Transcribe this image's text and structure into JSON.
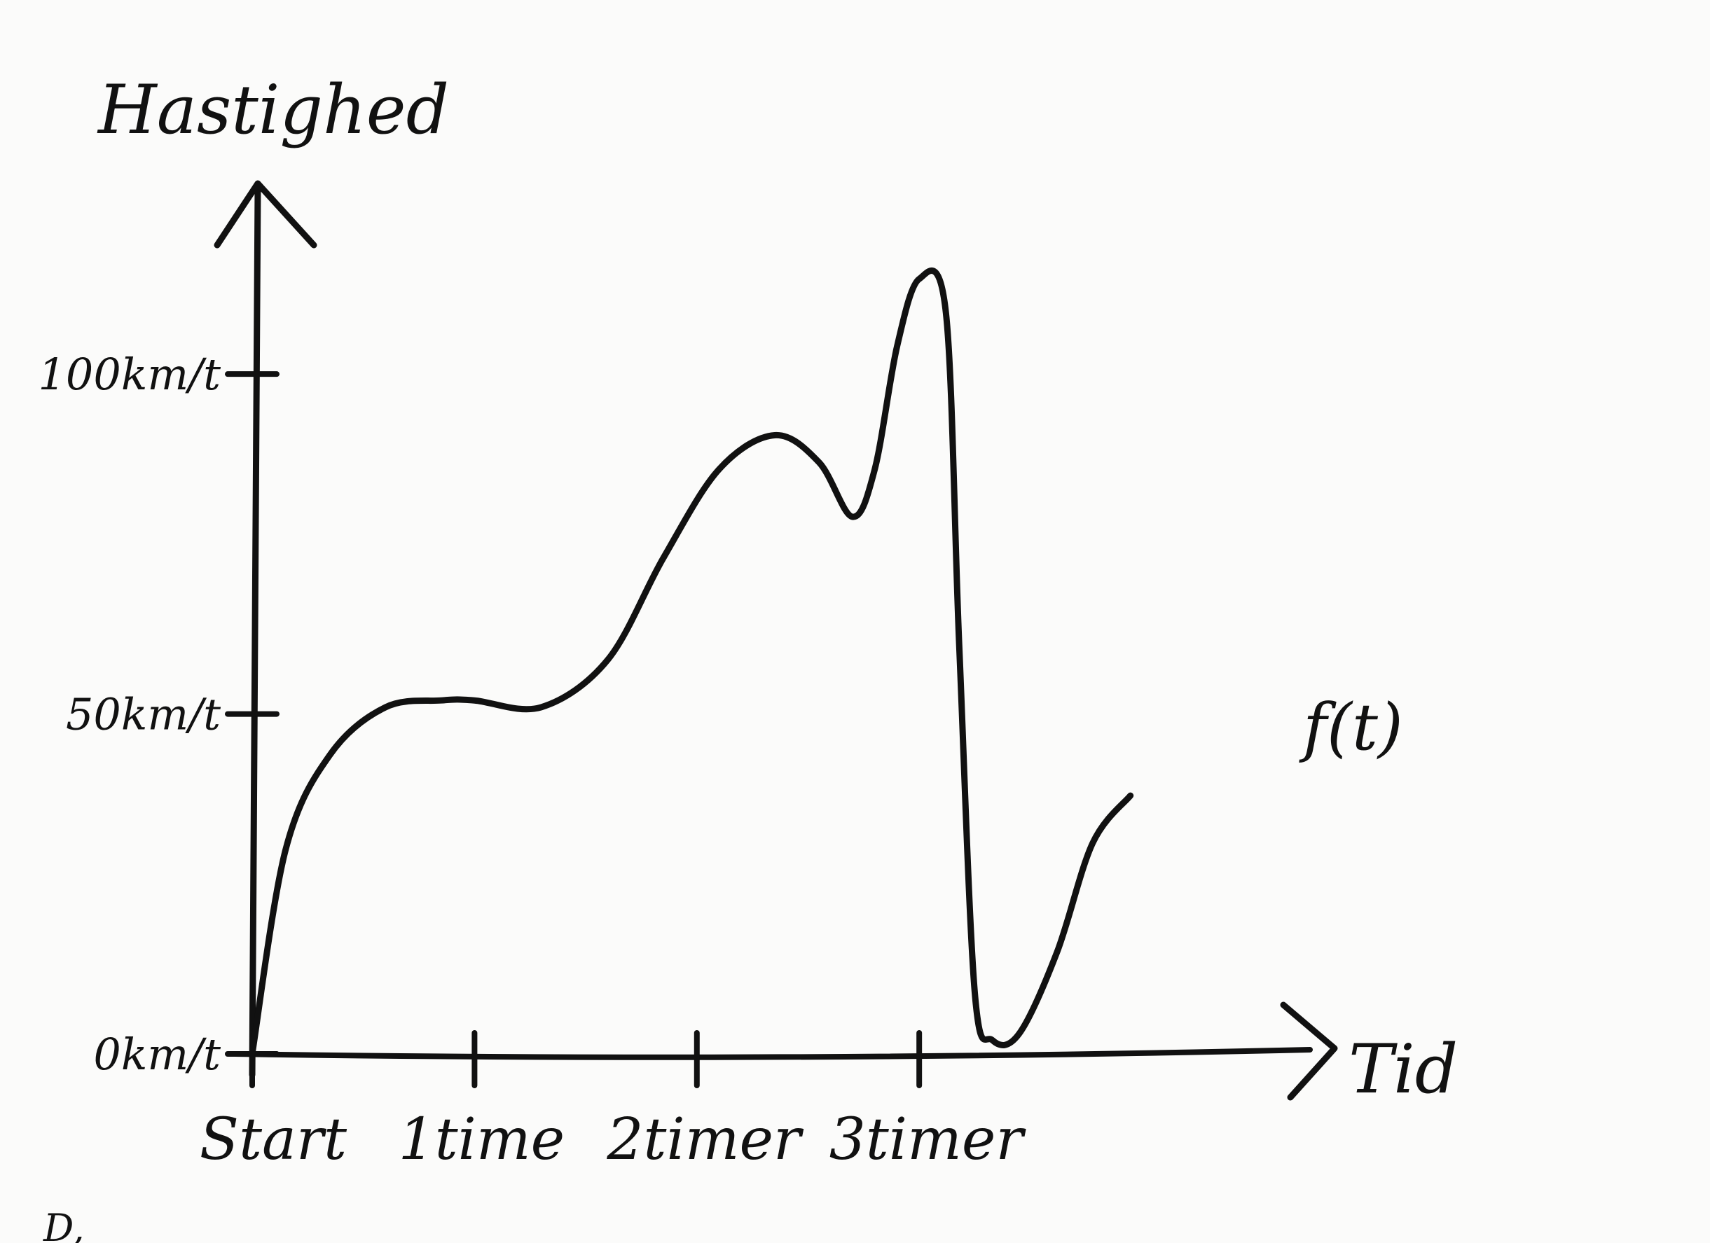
{
  "chart_data": {
    "type": "line",
    "title": "",
    "xlabel": "Tid",
    "ylabel": "Hastighed",
    "x_ticks": [
      "Start",
      "1time",
      "2timer",
      "3timer"
    ],
    "y_ticks": [
      "0km/t",
      "50km/t",
      "100km/t"
    ],
    "xlim": [
      0,
      4.6
    ],
    "ylim": [
      0,
      120
    ],
    "grid": false,
    "legend": "none",
    "series": [
      {
        "name": "f(t)",
        "x": [
          0,
          0.15,
          0.35,
          0.6,
          0.85,
          1.0,
          1.3,
          1.6,
          1.85,
          2.1,
          2.35,
          2.55,
          2.7,
          2.8,
          2.9,
          3.0,
          3.12,
          3.18,
          3.25,
          3.33,
          3.45,
          3.62,
          3.78,
          3.95
        ],
        "y": [
          0,
          30,
          44,
          51,
          52,
          52,
          51,
          58,
          73,
          86,
          91,
          87,
          79,
          86,
          104,
          114,
          109,
          60,
          9,
          2,
          3,
          15,
          31,
          38
        ]
      }
    ]
  },
  "annotations": {
    "corner_mark": "D,"
  },
  "colors": {
    "ink": "#111111",
    "paper": "#fbfbfa"
  }
}
